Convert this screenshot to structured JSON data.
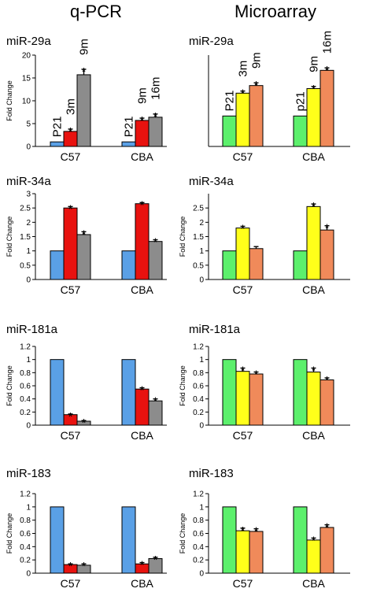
{
  "headers": {
    "left": "q-PCR",
    "right": "Microarray"
  },
  "colors": {
    "qpcr": [
      "#5aa0e6",
      "#e8120f",
      "#8c8c8c"
    ],
    "micro": [
      "#5cf06c",
      "#ffff1a",
      "#f08a5a"
    ]
  },
  "chart_data": [
    {
      "type": "bar",
      "method": "q-PCR",
      "title": "miR-29a",
      "ylabel": "Fold Change",
      "categories": [
        "C57",
        "CBA"
      ],
      "ylim": [
        0,
        20
      ],
      "yticks": [
        0,
        5,
        10,
        15,
        20
      ],
      "ytick_labels": [
        "0",
        "5",
        "10",
        "15",
        "20"
      ],
      "series": [
        {
          "values": [
            1,
            1
          ],
          "errors": [
            0,
            0
          ],
          "stars": [
            false,
            false
          ]
        },
        {
          "values": [
            3.3,
            5.7
          ],
          "errors": [
            0.5,
            0.5
          ],
          "stars": [
            true,
            true
          ]
        },
        {
          "values": [
            15.7,
            6.4
          ],
          "errors": [
            1.2,
            0.7
          ],
          "stars": [
            true,
            true
          ]
        }
      ],
      "bar_labels": [
        [
          "P21",
          "3m",
          "9m"
        ],
        [
          "P21",
          "9m",
          "16m"
        ]
      ]
    },
    {
      "type": "bar",
      "method": "Microarray",
      "title": "miR-29a",
      "ylabel": "",
      "categories": [
        "C57",
        "CBA"
      ],
      "ylim": [
        0,
        3
      ],
      "yticks": [],
      "ytick_labels": [],
      "series": [
        {
          "values": [
            1,
            1
          ],
          "errors": [
            0,
            0
          ],
          "stars": [
            false,
            false
          ]
        },
        {
          "values": [
            1.75,
            1.9
          ],
          "errors": [
            0.07,
            0.07
          ],
          "stars": [
            true,
            true
          ]
        },
        {
          "values": [
            2.0,
            2.5
          ],
          "errors": [
            0.09,
            0.08
          ],
          "stars": [
            true,
            true
          ]
        }
      ],
      "bar_labels": [
        [
          "P21",
          "3m",
          "9m"
        ],
        [
          "p21",
          "9m",
          "16m"
        ]
      ]
    },
    {
      "type": "bar",
      "method": "q-PCR",
      "title": "miR-34a",
      "ylabel": "Fold Change",
      "categories": [
        "C57",
        "CBA"
      ],
      "ylim": [
        0,
        3
      ],
      "yticks": [
        0,
        0.5,
        1,
        1.5,
        2,
        2.5,
        3
      ],
      "ytick_labels": [
        "0",
        "0.5",
        "1",
        "1.5",
        "2",
        "2.5",
        "3"
      ],
      "series": [
        {
          "values": [
            1,
            1
          ],
          "errors": [
            0,
            0
          ],
          "stars": [
            false,
            false
          ]
        },
        {
          "values": [
            2.5,
            2.65
          ],
          "errors": [
            0.05,
            0.04
          ],
          "stars": [
            true,
            true
          ]
        },
        {
          "values": [
            1.57,
            1.33
          ],
          "errors": [
            0.1,
            0.06
          ],
          "stars": [
            true,
            true
          ]
        }
      ]
    },
    {
      "type": "bar",
      "method": "Microarray",
      "title": "miR-34a",
      "ylabel": "Fold Change",
      "categories": [
        "C57",
        "CBA"
      ],
      "ylim": [
        0,
        3
      ],
      "yticks": [
        0,
        0.5,
        1,
        1.5,
        2,
        2.5
      ],
      "ytick_labels": [
        "0",
        "0.5",
        "1",
        "1.5",
        "2",
        "2.5"
      ],
      "series": [
        {
          "values": [
            1,
            1
          ],
          "errors": [
            0,
            0
          ],
          "stars": [
            false,
            false
          ]
        },
        {
          "values": [
            1.8,
            2.55
          ],
          "errors": [
            0.06,
            0.09
          ],
          "stars": [
            true,
            true
          ]
        },
        {
          "values": [
            1.08,
            1.73
          ],
          "errors": [
            0.07,
            0.15
          ],
          "stars": [
            false,
            true
          ]
        }
      ]
    },
    {
      "type": "bar",
      "method": "q-PCR",
      "title": "miR-181a",
      "ylabel": "Fold Change",
      "categories": [
        "C57",
        "CBA"
      ],
      "ylim": [
        0,
        1.2
      ],
      "yticks": [
        0,
        0.2,
        0.4,
        0.6,
        0.8,
        1,
        1.2
      ],
      "ytick_labels": [
        "0",
        "0.2",
        "0.4",
        "0.6",
        "0.8",
        "1",
        "1.2"
      ],
      "series": [
        {
          "values": [
            1,
            1
          ],
          "errors": [
            0,
            0
          ],
          "stars": [
            false,
            false
          ]
        },
        {
          "values": [
            0.16,
            0.55
          ],
          "errors": [
            0.01,
            0.02
          ],
          "stars": [
            true,
            true
          ]
        },
        {
          "values": [
            0.06,
            0.37
          ],
          "errors": [
            0.01,
            0.03
          ],
          "stars": [
            true,
            true
          ]
        }
      ]
    },
    {
      "type": "bar",
      "method": "Microarray",
      "title": "miR-181a",
      "ylabel": "Fold Change",
      "categories": [
        "C57",
        "CBA"
      ],
      "ylim": [
        0,
        1.2
      ],
      "yticks": [
        0,
        0.2,
        0.4,
        0.6,
        0.8,
        1,
        1.2
      ],
      "ytick_labels": [
        "0",
        "0.2",
        "0.4",
        "0.6",
        "0.8",
        "1",
        "1.2"
      ],
      "series": [
        {
          "values": [
            1,
            1
          ],
          "errors": [
            0,
            0
          ],
          "stars": [
            false,
            false
          ]
        },
        {
          "values": [
            0.82,
            0.81
          ],
          "errors": [
            0.05,
            0.06
          ],
          "stars": [
            true,
            true
          ]
        },
        {
          "values": [
            0.78,
            0.69
          ],
          "errors": [
            0.03,
            0.03
          ],
          "stars": [
            true,
            true
          ]
        }
      ]
    },
    {
      "type": "bar",
      "method": "q-PCR",
      "title": "miR-183",
      "ylabel": "Fold Change",
      "categories": [
        "C57",
        "CBA"
      ],
      "ylim": [
        0,
        1.2
      ],
      "yticks": [
        0,
        0.2,
        0.4,
        0.6,
        0.8,
        1,
        1.2
      ],
      "ytick_labels": [
        "0",
        "0.2",
        "0.4",
        "0.6",
        "0.8",
        "1",
        "1.2"
      ],
      "series": [
        {
          "values": [
            1,
            1
          ],
          "errors": [
            0,
            0
          ],
          "stars": [
            false,
            false
          ]
        },
        {
          "values": [
            0.13,
            0.14
          ],
          "errors": [
            0.01,
            0.02
          ],
          "stars": [
            true,
            true
          ]
        },
        {
          "values": [
            0.12,
            0.22
          ],
          "errors": [
            0.02,
            0.02
          ],
          "stars": [
            true,
            true
          ]
        }
      ]
    },
    {
      "type": "bar",
      "method": "Microarray",
      "title": "miR-183",
      "ylabel": "Fold Change",
      "categories": [
        "C57",
        "CBA"
      ],
      "ylim": [
        0,
        1.2
      ],
      "yticks": [
        0,
        0.2,
        0.4,
        0.6,
        0.8,
        1,
        1.2
      ],
      "ytick_labels": [
        "0",
        "0.2",
        "0.4",
        "0.6",
        "0.8",
        "1",
        "1.2"
      ],
      "series": [
        {
          "values": [
            1,
            1
          ],
          "errors": [
            0,
            0
          ],
          "stars": [
            false,
            false
          ]
        },
        {
          "values": [
            0.64,
            0.5
          ],
          "errors": [
            0.04,
            0.03
          ],
          "stars": [
            true,
            true
          ]
        },
        {
          "values": [
            0.63,
            0.69
          ],
          "errors": [
            0.04,
            0.04
          ],
          "stars": [
            true,
            true
          ]
        }
      ]
    }
  ]
}
